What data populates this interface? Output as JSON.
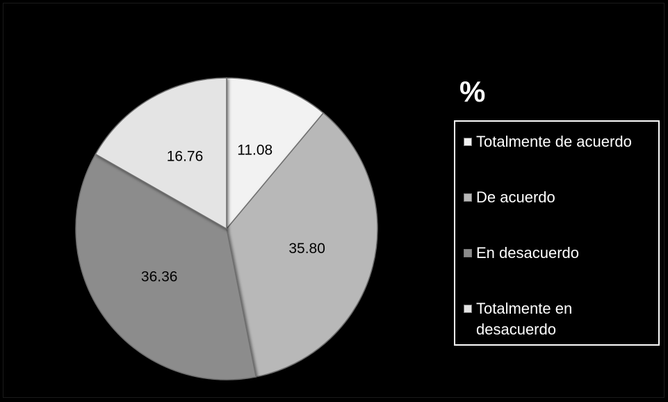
{
  "chart_data": {
    "type": "pie",
    "title": "%",
    "categories": [
      "Totalmente de acuerdo",
      "De acuerdo",
      "En desacuerdo",
      "Totalmente en desacuerdo"
    ],
    "values": [
      11.08,
      35.8,
      36.36,
      16.76
    ],
    "value_labels": [
      "11.08",
      "35.80",
      "36.36",
      "16.76"
    ],
    "colors": [
      "#f2f2f2",
      "#b8b8b8",
      "#8c8c8c",
      "#e4e4e4"
    ],
    "legend_position": "right",
    "start_angle": "top",
    "direction": "clockwise"
  }
}
